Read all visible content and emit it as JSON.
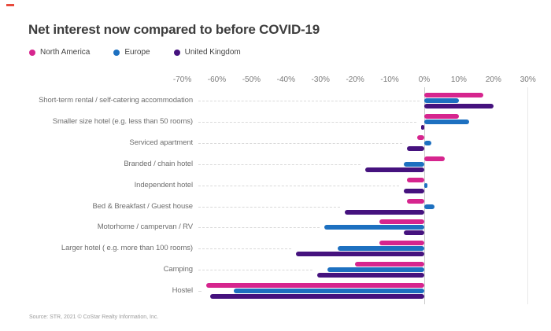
{
  "header": {
    "title": "Net interest now compared to before COVID-19"
  },
  "chart_data": {
    "type": "bar",
    "orientation": "horizontal",
    "title": "Net interest now compared to before COVID-19",
    "xlabel": "",
    "ylabel": "",
    "xlim": [
      -70,
      30
    ],
    "x_ticks": [
      "-70%",
      "-60%",
      "-50%",
      "-40%",
      "-30%",
      "-20%",
      "-10%",
      "0%",
      "10%",
      "20%",
      "30%"
    ],
    "x_tick_values": [
      -70,
      -60,
      -50,
      -40,
      -30,
      -20,
      -10,
      0,
      10,
      20,
      30
    ],
    "grid": "zero-line-only",
    "legend_position": "top-left",
    "categories": [
      "Short-term rental / self-catering accommodation",
      "Smaller size hotel (e.g. less than 50 rooms)",
      "Serviced apartment",
      "Branded / chain hotel",
      "Independent hotel",
      "Bed & Breakfast / Guest house",
      "Motorhome / campervan / RV",
      "Larger hotel ( e.g. more than 100 rooms)",
      "Camping",
      "Hostel"
    ],
    "series": [
      {
        "name": "North America",
        "color": "#d6258e",
        "values": [
          17,
          10,
          -2,
          6,
          -5,
          -5,
          -13,
          -13,
          -20,
          -63
        ]
      },
      {
        "name": "Europe",
        "color": "#1d70c0",
        "values": [
          10,
          13,
          2,
          -6,
          1,
          3,
          -29,
          -25,
          -28,
          -55
        ]
      },
      {
        "name": "United Kingdom",
        "color": "#45127e",
        "values": [
          20,
          -1,
          -5,
          -17,
          -6,
          -23,
          -6,
          -37,
          -31,
          -62
        ]
      }
    ]
  },
  "footer": {
    "source": "Source: STR, 2021 © CoStar Realty Information, Inc."
  }
}
